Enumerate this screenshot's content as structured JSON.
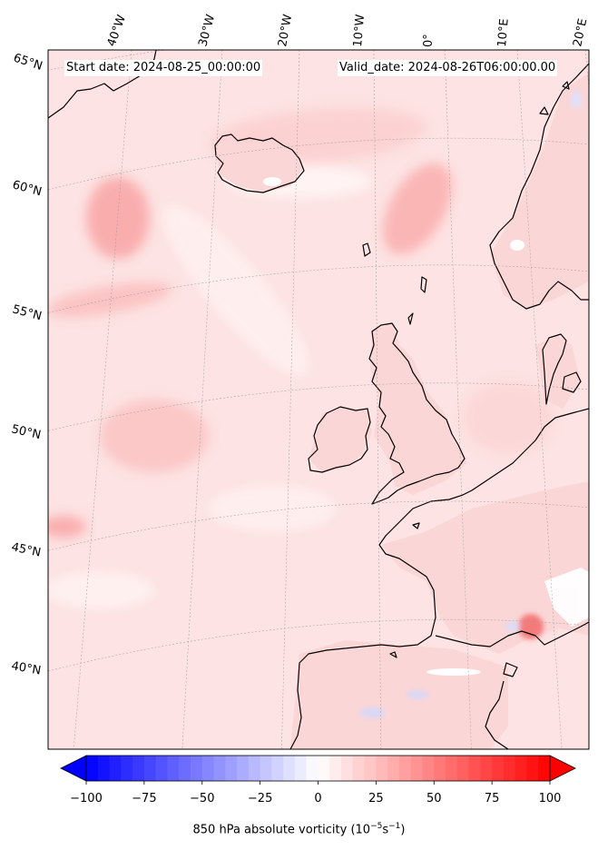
{
  "header": {
    "start_date": "Start date: 2024-08-25_00:00:00",
    "valid_date": "Valid_date: 2024-08-26T06:00:00.00"
  },
  "lon_labels": [
    "40°W",
    "30°W",
    "20°W",
    "10°W",
    "0°",
    "10°E",
    "20°E"
  ],
  "lat_labels": [
    "65°N",
    "60°N",
    "55°N",
    "50°N",
    "45°N",
    "40°N"
  ],
  "colorbar": {
    "ticks": [
      "−100",
      "−75",
      "−50",
      "−25",
      "0",
      "25",
      "50",
      "75",
      "100"
    ],
    "label_prefix": "850 hPa absolute vorticity (10",
    "label_exp1": "−5",
    "label_mid": "s",
    "label_exp2": "−1",
    "label_suffix": ")",
    "min": -100,
    "max": 100,
    "levels": 40,
    "colormap": "bwr"
  },
  "colors": {
    "coast": "#000000",
    "ocean_base": "#fde2e2",
    "land_base": "#fbd5d5"
  }
}
